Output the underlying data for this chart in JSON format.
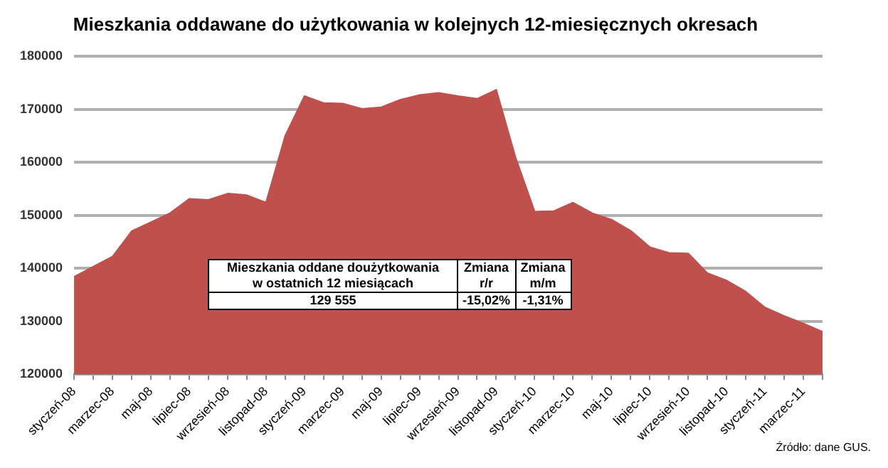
{
  "chart_data": {
    "type": "area",
    "title": "Mieszkania oddawane do użytkowania w kolejnych 12-miesięcznych okresach",
    "categories": [
      "styczeń-08",
      null,
      "marzec-08",
      null,
      "maj-08",
      null,
      "lipiec-08",
      null,
      "wrzesień-08",
      null,
      "listopad-08",
      null,
      "styczeń-09",
      null,
      "marzec-09",
      null,
      "maj-09",
      null,
      "lipiec-09",
      null,
      "wrzesień-09",
      null,
      "listopad-09",
      null,
      "styczeń-10",
      null,
      "marzec-10",
      null,
      "maj-10",
      null,
      "lipiec-10",
      null,
      "wrzesień-10",
      null,
      "listopad-10",
      null,
      "styczeń-11",
      null,
      "marzec-11",
      null
    ],
    "series": [
      {
        "color": "#c0504d",
        "values": [
          138400,
          140300,
          142200,
          147000,
          148700,
          150400,
          153100,
          152900,
          154100,
          153800,
          152400,
          165000,
          172500,
          171200,
          171100,
          170100,
          170400,
          171800,
          172700,
          173100,
          172500,
          172000,
          173700,
          161000,
          150700,
          150800,
          152400,
          150400,
          149200,
          147100,
          144000,
          142900,
          142800,
          139100,
          137700,
          135600,
          132600,
          131000,
          129600,
          128000
        ]
      }
    ],
    "ylim": [
      120000,
      180000
    ],
    "yticks": [
      120000,
      130000,
      140000,
      150000,
      160000,
      170000,
      180000
    ],
    "grid": "y",
    "legend": false,
    "annotations": [
      "Mieszkania oddane doużytkowania w ostatnich 12 miesiącach",
      "Zmiana r/r",
      "Zmiana m/m",
      "129 555",
      "-15,02%",
      "-1,31%",
      "Źródło: dane GUS."
    ]
  }
}
